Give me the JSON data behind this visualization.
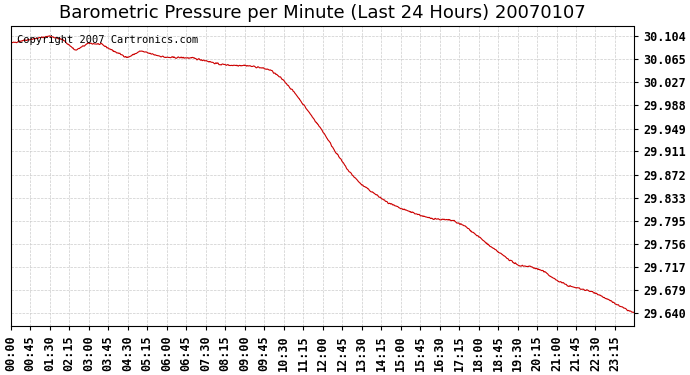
{
  "title": "Barometric Pressure per Minute (Last 24 Hours) 20070107",
  "copyright_text": "Copyright 2007 Cartronics.com",
  "line_color": "#cc0000",
  "background_color": "#ffffff",
  "grid_color": "#cccccc",
  "yticks": [
    30.104,
    30.065,
    30.027,
    29.988,
    29.949,
    29.911,
    29.872,
    29.833,
    29.795,
    29.756,
    29.717,
    29.679,
    29.64
  ],
  "xtick_labels": [
    "00:00",
    "00:45",
    "01:30",
    "02:15",
    "03:00",
    "03:45",
    "04:30",
    "05:15",
    "06:00",
    "06:45",
    "07:30",
    "08:15",
    "09:00",
    "09:45",
    "10:30",
    "11:15",
    "12:00",
    "12:45",
    "13:30",
    "14:15",
    "15:00",
    "15:45",
    "16:30",
    "17:15",
    "18:00",
    "18:45",
    "19:30",
    "20:15",
    "21:00",
    "21:45",
    "22:30",
    "23:15"
  ],
  "ylim_min": 29.618,
  "ylim_max": 30.12,
  "num_minutes": 1440,
  "title_fontsize": 13,
  "axis_fontsize": 8.5,
  "copyright_fontsize": 7.5,
  "ctrl_x": [
    0,
    30,
    60,
    90,
    120,
    150,
    180,
    210,
    240,
    270,
    300,
    330,
    360,
    390,
    420,
    450,
    480,
    510,
    540,
    570,
    600,
    630,
    660,
    690,
    720,
    750,
    780,
    810,
    840,
    870,
    900,
    930,
    960,
    990,
    1020,
    1050,
    1080,
    1110,
    1140,
    1170,
    1200,
    1230,
    1260,
    1290,
    1320,
    1350,
    1380,
    1410,
    1439
  ],
  "ctrl_y": [
    30.092,
    30.097,
    30.1,
    30.104,
    30.098,
    30.08,
    30.092,
    30.09,
    30.078,
    30.068,
    30.079,
    30.073,
    30.068,
    30.068,
    30.067,
    30.063,
    30.057,
    30.055,
    30.055,
    30.052,
    30.047,
    30.03,
    30.005,
    29.975,
    29.945,
    29.91,
    29.878,
    29.855,
    29.84,
    29.825,
    29.815,
    29.808,
    29.8,
    29.797,
    29.795,
    29.785,
    29.768,
    29.75,
    29.735,
    29.72,
    29.718,
    29.71,
    29.695,
    29.685,
    29.68,
    29.674,
    29.662,
    29.65,
    29.64
  ]
}
